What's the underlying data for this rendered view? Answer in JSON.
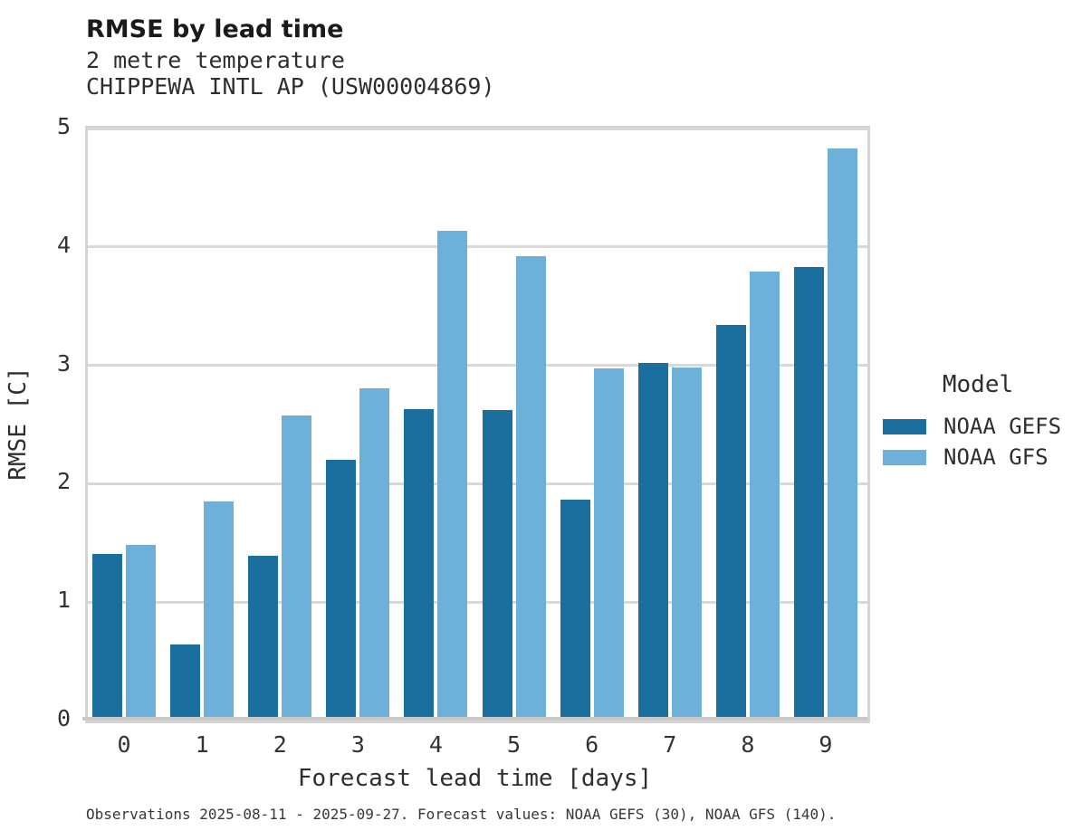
{
  "header": {
    "title": "RMSE by lead time",
    "subtitle_line1": "2 metre temperature",
    "subtitle_line2": "CHIPPEWA INTL AP (USW00004869)"
  },
  "legend": {
    "title": "Model",
    "entries": [
      {
        "label": "NOAA GEFS",
        "color": "#1B6F9E"
      },
      {
        "label": "NOAA GFS",
        "color": "#6DB0D8"
      }
    ]
  },
  "footer": {
    "caption": "Observations 2025-08-11 - 2025-09-27. Forecast values: NOAA GEFS (30), NOAA GFS (140)."
  },
  "chart_data": {
    "type": "bar",
    "title": "RMSE by lead time",
    "subtitle": "2 metre temperature — CHIPPEWA INTL AP (USW00004869)",
    "categories": [
      "0",
      "1",
      "2",
      "3",
      "4",
      "5",
      "6",
      "7",
      "8",
      "9"
    ],
    "series": [
      {
        "name": "NOAA GEFS",
        "color": "#1B6F9E",
        "values": [
          1.38,
          0.62,
          1.37,
          2.18,
          2.61,
          2.6,
          1.84,
          3.0,
          3.32,
          3.81
        ]
      },
      {
        "name": "NOAA GFS",
        "color": "#6DB0D8",
        "values": [
          1.46,
          1.83,
          2.55,
          2.78,
          4.11,
          3.9,
          2.95,
          2.96,
          3.77,
          4.81
        ]
      }
    ],
    "xlabel": "Forecast lead time [days]",
    "ylabel": "RMSE [C]",
    "ylim": [
      0,
      5
    ],
    "yticks": [
      0,
      1,
      2,
      3,
      4,
      5
    ],
    "grid": true,
    "gridline_color": "#d9d9d9",
    "legend_position": "right"
  }
}
